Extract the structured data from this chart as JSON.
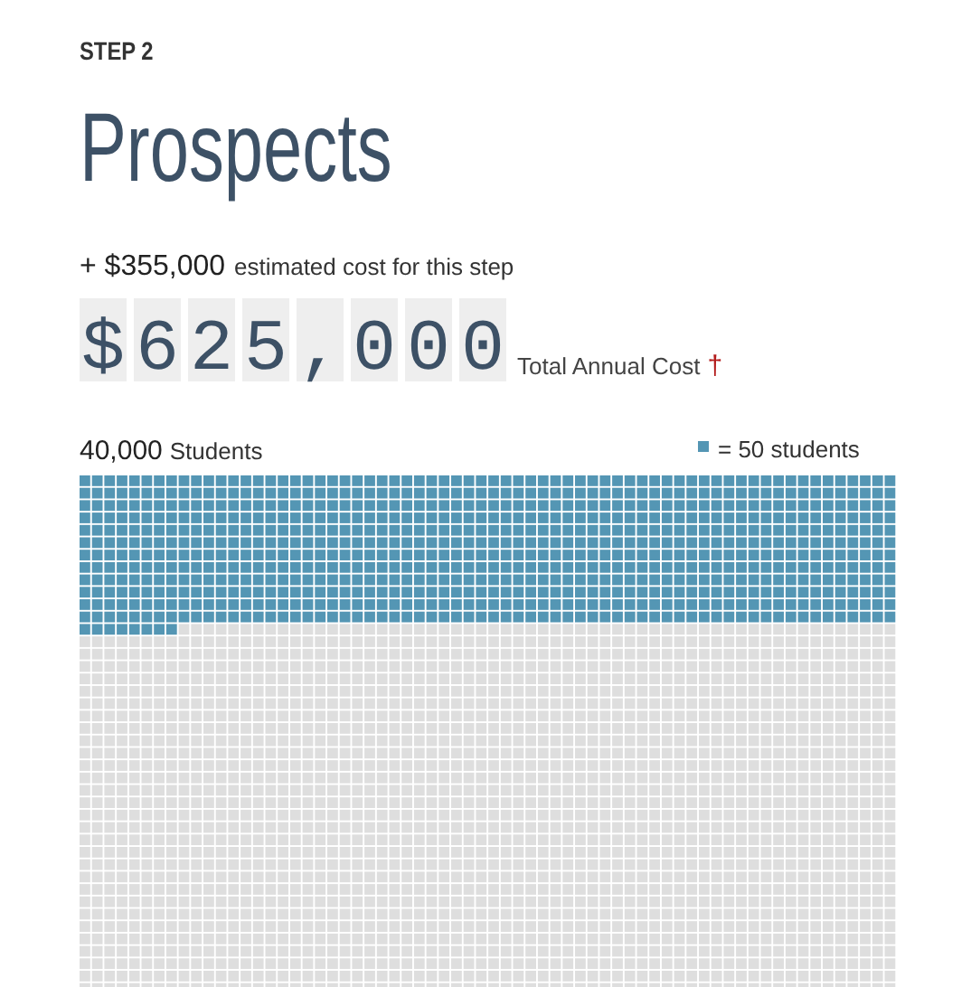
{
  "chart_data": {
    "type": "other",
    "subtitle": "STEP 2",
    "title": "Prospects",
    "annotations": [
      "+ $355,000",
      "estimated cost for this step",
      "$625,000",
      "Total Annual Cost",
      "†",
      "= 50 students"
    ],
    "categories": [
      "Students"
    ],
    "values": [
      40000
    ],
    "value_labels": [
      "40,000"
    ],
    "color": "#5496b4"
  }
}
